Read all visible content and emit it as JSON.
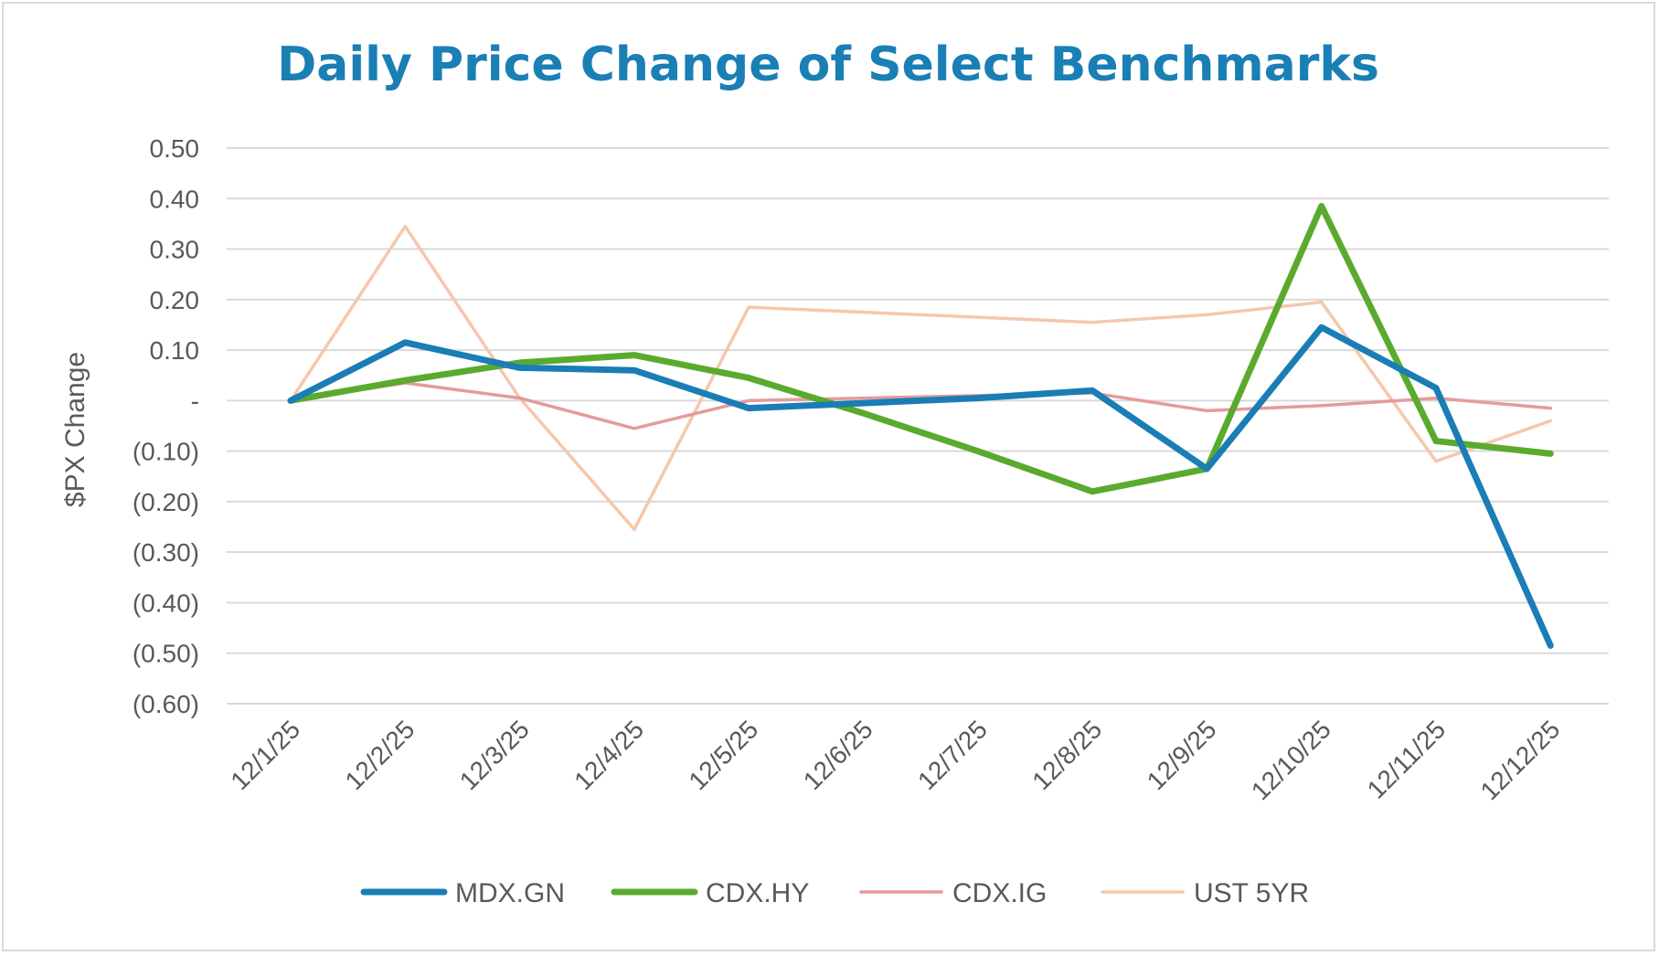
{
  "chart_data": {
    "type": "line",
    "title": "Daily Price Change of Select Benchmarks",
    "xlabel": "",
    "ylabel": "$PX Change",
    "ylim": [
      -0.6,
      0.5
    ],
    "yticks": [
      0.5,
      0.4,
      0.3,
      0.2,
      0.1,
      0,
      -0.1,
      -0.2,
      -0.3,
      -0.4,
      -0.5,
      -0.6
    ],
    "ytick_labels": [
      "0.50",
      "0.40",
      "0.30",
      "0.20",
      "0.10",
      "-",
      "(0.10)",
      "(0.20)",
      "(0.30)",
      "(0.40)",
      "(0.50)",
      "(0.60)"
    ],
    "categories": [
      "12/1/25",
      "12/2/25",
      "12/3/25",
      "12/4/25",
      "12/5/25",
      "12/6/25",
      "12/7/25",
      "12/8/25",
      "12/9/25",
      "12/10/25",
      "12/11/25",
      "12/12/25"
    ],
    "grid": true,
    "legend_position": "bottom",
    "series": [
      {
        "name": "MDX.GN",
        "color": "#1a7db5",
        "width": "bold",
        "values": [
          0.0,
          0.115,
          0.065,
          0.06,
          -0.015,
          -0.005,
          0.005,
          0.02,
          -0.135,
          0.145,
          0.025,
          -0.485
        ]
      },
      {
        "name": "CDX.HY",
        "color": "#5aaa2e",
        "width": "bold",
        "values": [
          0.0,
          0.04,
          0.075,
          0.09,
          0.045,
          -0.025,
          -0.1,
          -0.18,
          -0.135,
          0.385,
          -0.08,
          -0.105
        ]
      },
      {
        "name": "CDX.IG",
        "color": "#e49b9b",
        "width": "thin",
        "values": [
          0.0,
          0.035,
          0.005,
          -0.055,
          0.0,
          0.005,
          0.01,
          0.015,
          -0.02,
          -0.01,
          0.005,
          -0.015
        ]
      },
      {
        "name": "UST 5YR",
        "color": "#f6c7ab",
        "width": "thin",
        "values": [
          0.0,
          0.345,
          0.005,
          -0.255,
          0.185,
          0.175,
          0.165,
          0.155,
          0.17,
          0.195,
          -0.12,
          -0.04
        ]
      }
    ]
  }
}
